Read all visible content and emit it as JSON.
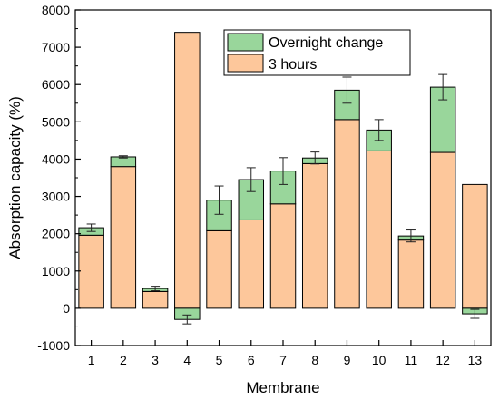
{
  "chart_data": {
    "type": "bar",
    "stacked": true,
    "title": "",
    "xlabel": "Membrane",
    "ylabel": "Absorption capacity (%)",
    "ylim": [
      -1000,
      8000
    ],
    "yticks": [
      -1000,
      0,
      1000,
      2000,
      3000,
      4000,
      5000,
      6000,
      7000,
      8000
    ],
    "categories": [
      "1",
      "2",
      "3",
      "4",
      "5",
      "6",
      "7",
      "8",
      "9",
      "10",
      "11",
      "12",
      "13"
    ],
    "grid": false,
    "legend_position": "top-right",
    "series": [
      {
        "name": "3 hours",
        "color": "#fdc79b",
        "values": [
          1960,
          3800,
          450,
          7400,
          2080,
          2370,
          2800,
          3880,
          5060,
          4220,
          1830,
          4180,
          3320
        ]
      },
      {
        "name": "Overnight change",
        "color": "#99d69b",
        "values": [
          200,
          260,
          80,
          -300,
          820,
          1080,
          880,
          150,
          790,
          560,
          110,
          1750,
          -150
        ]
      }
    ],
    "error_bars": [
      {
        "center": 2160,
        "low": 2060,
        "high": 2260
      },
      {
        "center": 4060,
        "low": 4030,
        "high": 4090
      },
      {
        "center": 530,
        "low": 470,
        "high": 590
      },
      {
        "center": -300,
        "low": -420,
        "high": -180
      },
      {
        "center": 2900,
        "low": 2520,
        "high": 3280
      },
      {
        "center": 3450,
        "low": 3130,
        "high": 3770
      },
      {
        "center": 3680,
        "low": 3320,
        "high": 4040
      },
      {
        "center": 4030,
        "low": 3870,
        "high": 4190
      },
      {
        "center": 5850,
        "low": 5500,
        "high": 6200
      },
      {
        "center": 4780,
        "low": 4500,
        "high": 5060
      },
      {
        "center": 1940,
        "low": 1780,
        "high": 2100
      },
      {
        "center": 5930,
        "low": 5590,
        "high": 6270
      },
      {
        "center": -150,
        "low": -270,
        "high": -30
      }
    ]
  }
}
